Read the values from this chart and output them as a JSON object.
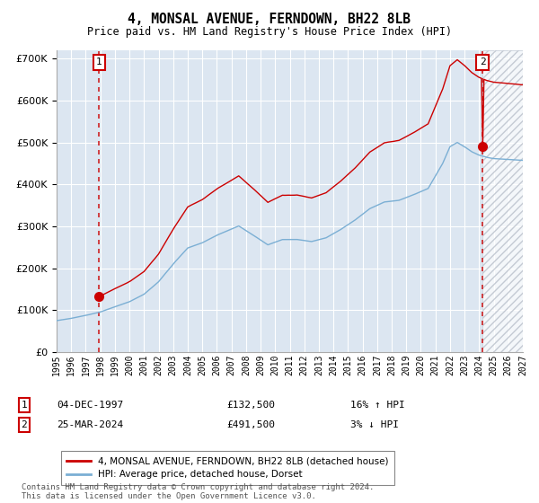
{
  "title": "4, MONSAL AVENUE, FERNDOWN, BH22 8LB",
  "subtitle": "Price paid vs. HM Land Registry's House Price Index (HPI)",
  "legend_line1": "4, MONSAL AVENUE, FERNDOWN, BH22 8LB (detached house)",
  "legend_line2": "HPI: Average price, detached house, Dorset",
  "transaction1_date": "04-DEC-1997",
  "transaction1_price": "£132,500",
  "transaction1_hpi": "16% ↑ HPI",
  "transaction2_date": "25-MAR-2024",
  "transaction2_price": "£491,500",
  "transaction2_hpi": "3% ↓ HPI",
  "footer": "Contains HM Land Registry data © Crown copyright and database right 2024.\nThis data is licensed under the Open Government Licence v3.0.",
  "hpi_color": "#7bafd4",
  "price_color": "#cc0000",
  "background_color": "#dce6f1",
  "ylim": [
    0,
    720000
  ],
  "yticks": [
    0,
    100000,
    200000,
    300000,
    400000,
    500000,
    600000,
    700000
  ],
  "x_min": 1995.0,
  "x_max": 2027.0,
  "transaction1_x": 1997.92,
  "transaction1_y": 132500,
  "transaction2_x": 2024.23,
  "transaction2_y": 491500
}
